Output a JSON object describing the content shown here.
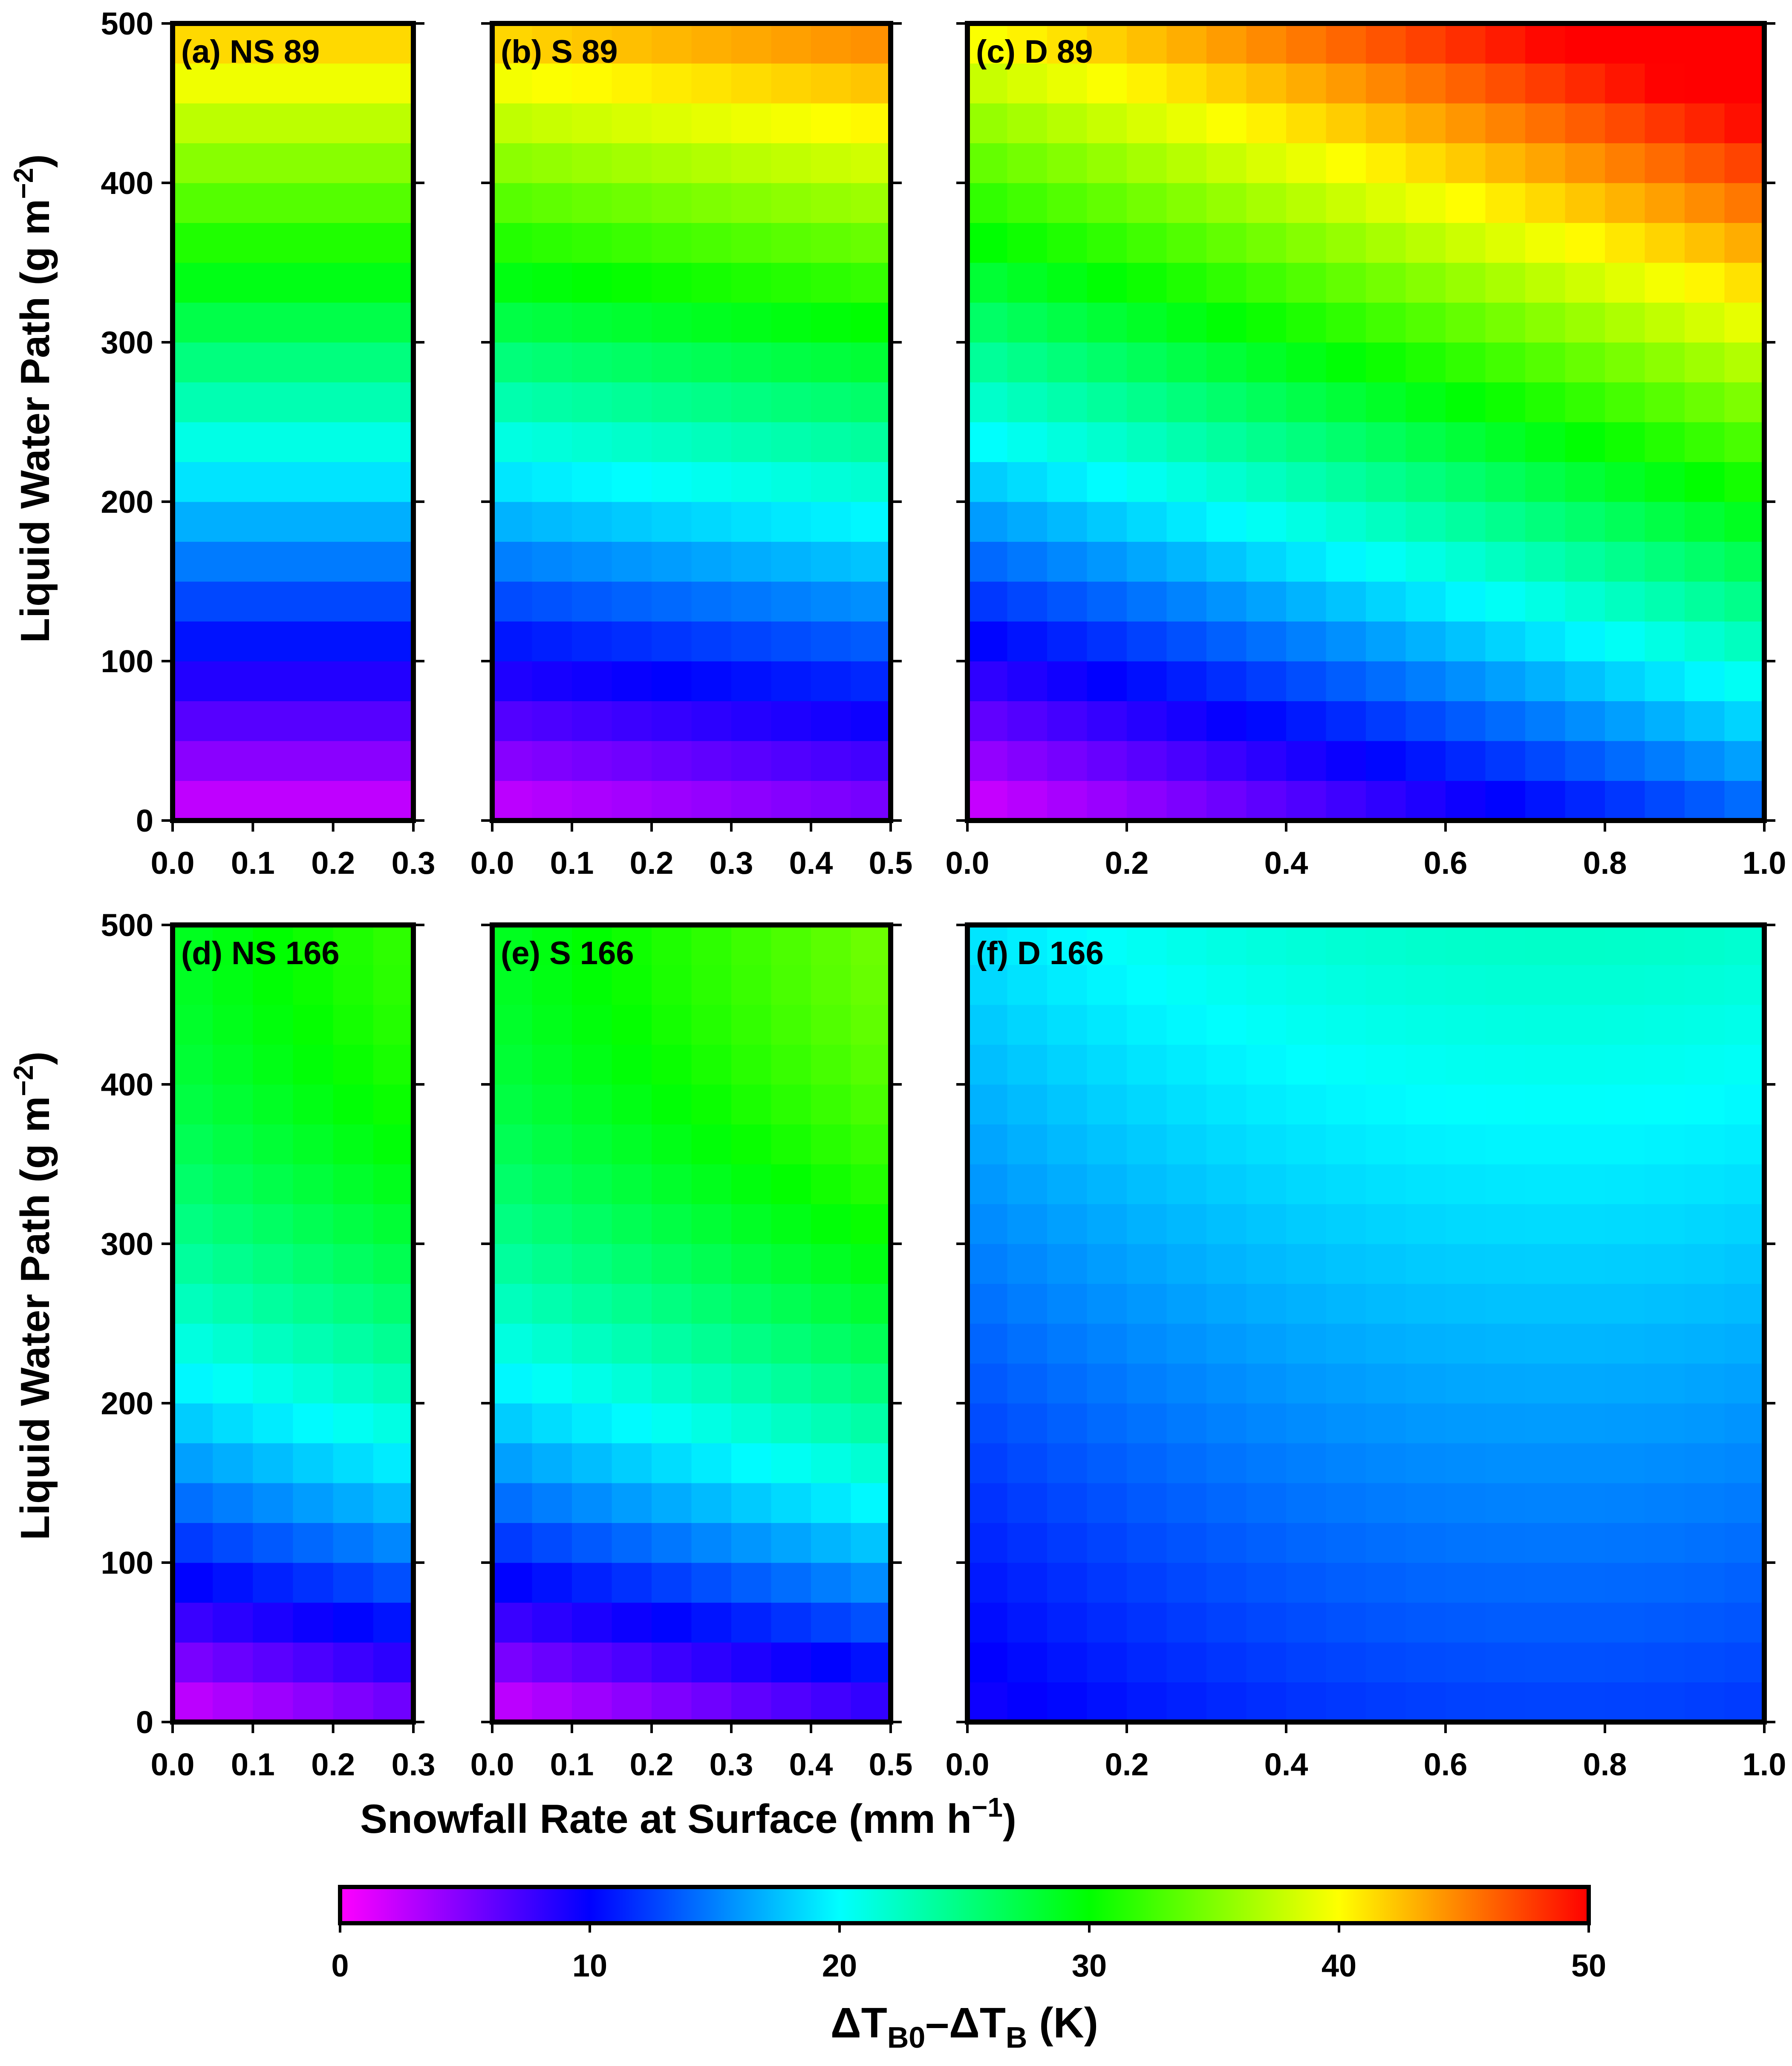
{
  "figure": {
    "ylabel_main": "Liquid Water Path (g m",
    "ylabel_sup": "−2",
    "ylabel_end": ")",
    "xlabel_main": "Snowfall Rate at Surface (mm h",
    "xlabel_sup": "−1",
    "xlabel_end": ")",
    "colorbar_label_delta1": "ΔT",
    "colorbar_label_sub1": "B0",
    "colorbar_label_delta2": "–ΔT",
    "colorbar_label_sub2": "B",
    "colorbar_label_end": " (K)",
    "colorbar_ticks": [
      "0",
      "10",
      "20",
      "30",
      "40",
      "50"
    ],
    "colorbar_range": [
      0,
      50
    ],
    "colormap": [
      "#ff00ff",
      "#0000ff",
      "#00ffff",
      "#00ff00",
      "#ffff00",
      "#ff0000"
    ],
    "y_ticks": [
      "0",
      "100",
      "200",
      "300",
      "400",
      "500"
    ]
  },
  "chart_data": [
    {
      "type": "heatmap",
      "title": "(a) NS 89",
      "xlim": [
        0,
        0.3
      ],
      "ylim": [
        0,
        500
      ],
      "x_ticks": [
        "0.0",
        "0.1",
        "0.2",
        "0.3"
      ],
      "nx": 6,
      "ny": 20,
      "freq": "89",
      "regime": "NS"
    },
    {
      "type": "heatmap",
      "title": "(b) S 89",
      "xlim": [
        0,
        0.5
      ],
      "ylim": [
        0,
        500
      ],
      "x_ticks": [
        "0.0",
        "0.1",
        "0.2",
        "0.3",
        "0.4",
        "0.5"
      ],
      "nx": 10,
      "ny": 20,
      "freq": "89",
      "regime": "S"
    },
    {
      "type": "heatmap",
      "title": "(c) D 89",
      "xlim": [
        0,
        1.0
      ],
      "ylim": [
        0,
        500
      ],
      "x_ticks": [
        "0.0",
        "0.2",
        "0.4",
        "0.6",
        "0.8",
        "1.0"
      ],
      "nx": 20,
      "ny": 20,
      "freq": "89",
      "regime": "D"
    },
    {
      "type": "heatmap",
      "title": "(d) NS 166",
      "xlim": [
        0,
        0.3
      ],
      "ylim": [
        0,
        500
      ],
      "x_ticks": [
        "0.0",
        "0.1",
        "0.2",
        "0.3"
      ],
      "nx": 6,
      "ny": 20,
      "freq": "166",
      "regime": "NS"
    },
    {
      "type": "heatmap",
      "title": "(e) S 166",
      "xlim": [
        0,
        0.5
      ],
      "ylim": [
        0,
        500
      ],
      "x_ticks": [
        "0.0",
        "0.1",
        "0.2",
        "0.3",
        "0.4",
        "0.5"
      ],
      "nx": 10,
      "ny": 20,
      "freq": "166",
      "regime": "S"
    },
    {
      "type": "heatmap",
      "title": "(f) D 166",
      "xlim": [
        0,
        1.0
      ],
      "ylim": [
        0,
        500
      ],
      "x_ticks": [
        "0.0",
        "0.2",
        "0.4",
        "0.6",
        "0.8",
        "1.0"
      ],
      "nx": 20,
      "ny": 20,
      "freq": "166",
      "regime": "D"
    }
  ]
}
